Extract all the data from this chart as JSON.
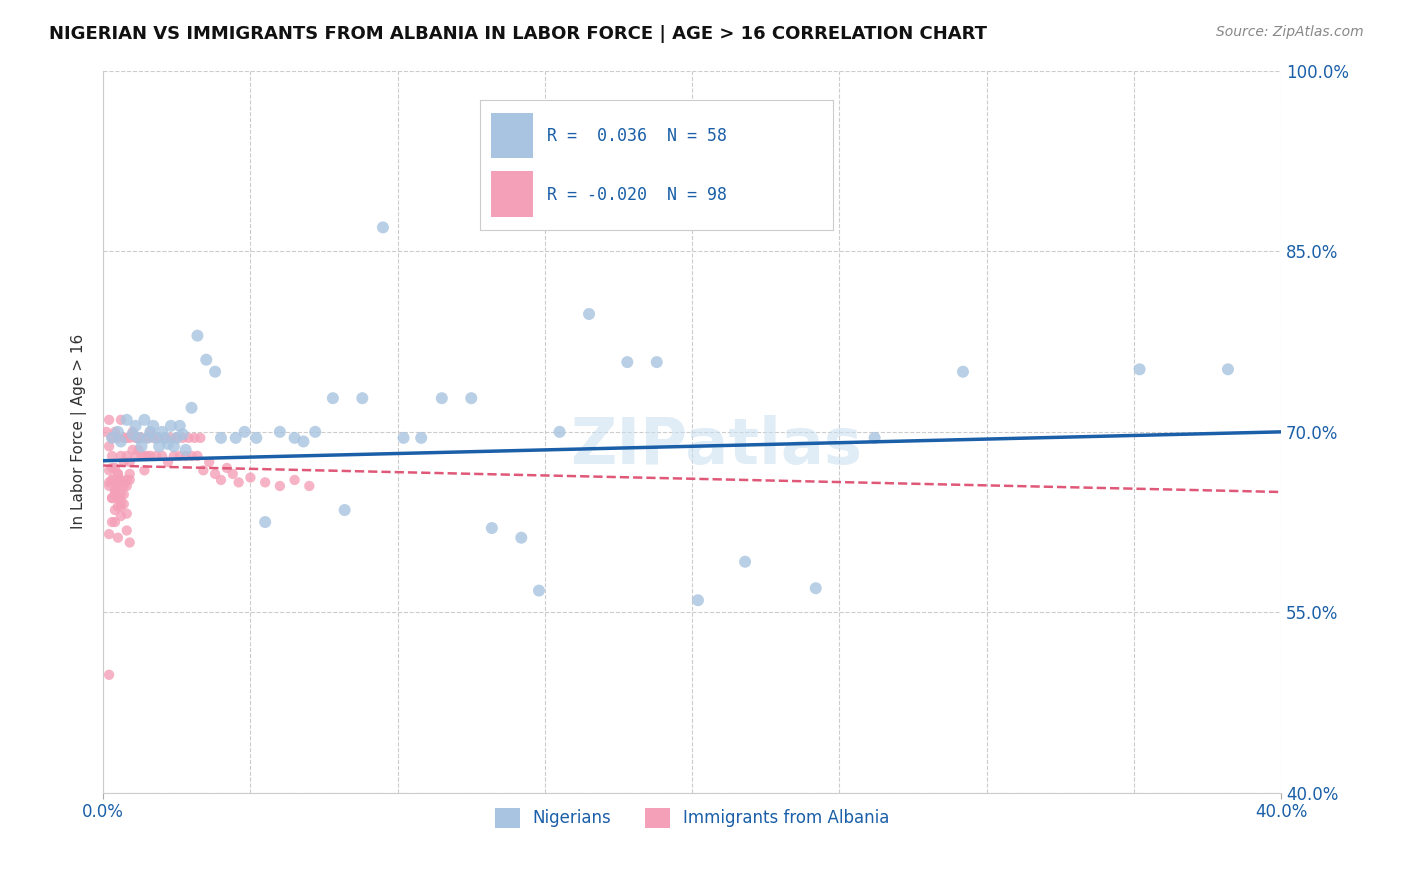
{
  "title": "NIGERIAN VS IMMIGRANTS FROM ALBANIA IN LABOR FORCE | AGE > 16 CORRELATION CHART",
  "source": "Source: ZipAtlas.com",
  "ylabel": "In Labor Force | Age > 16",
  "xlim": [
    0.0,
    0.4
  ],
  "ylim": [
    0.4,
    1.0
  ],
  "xticks": [
    0.0,
    0.05,
    0.1,
    0.15,
    0.2,
    0.25,
    0.3,
    0.35,
    0.4
  ],
  "ytick_positions": [
    0.4,
    0.55,
    0.7,
    0.85,
    1.0
  ],
  "yticklabels": [
    "40.0%",
    "55.0%",
    "70.0%",
    "85.0%",
    "100.0%"
  ],
  "blue_R": 0.036,
  "blue_N": 58,
  "pink_R": -0.02,
  "pink_N": 98,
  "blue_color": "#a8c4e0",
  "pink_color": "#f4a0b8",
  "blue_line_color": "#1a5fa8",
  "pink_line_color": "#e05878",
  "label_color": "#1a5fa8",
  "watermark": "ZIPatlas",
  "blue_line_x0": 0.0,
  "blue_line_y0": 0.676,
  "blue_line_x1": 0.4,
  "blue_line_y1": 0.7,
  "pink_line_x0": 0.0,
  "pink_line_y0": 0.672,
  "pink_line_x1": 0.4,
  "pink_line_y1": 0.65,
  "nigerians_x": [
    0.003,
    0.005,
    0.006,
    0.008,
    0.01,
    0.011,
    0.012,
    0.013,
    0.014,
    0.015,
    0.016,
    0.017,
    0.018,
    0.019,
    0.02,
    0.021,
    0.022,
    0.023,
    0.024,
    0.025,
    0.026,
    0.027,
    0.028,
    0.03,
    0.032,
    0.035,
    0.038,
    0.04,
    0.045,
    0.048,
    0.052,
    0.055,
    0.06,
    0.065,
    0.068,
    0.072,
    0.078,
    0.082,
    0.088,
    0.095,
    0.102,
    0.108,
    0.115,
    0.125,
    0.132,
    0.142,
    0.148,
    0.155,
    0.165,
    0.178,
    0.188,
    0.202,
    0.218,
    0.242,
    0.262,
    0.292,
    0.352,
    0.382
  ],
  "nigerians_y": [
    0.695,
    0.7,
    0.692,
    0.71,
    0.698,
    0.705,
    0.695,
    0.688,
    0.71,
    0.695,
    0.7,
    0.705,
    0.695,
    0.688,
    0.7,
    0.695,
    0.69,
    0.705,
    0.688,
    0.695,
    0.705,
    0.698,
    0.685,
    0.72,
    0.78,
    0.76,
    0.75,
    0.695,
    0.695,
    0.7,
    0.695,
    0.625,
    0.7,
    0.695,
    0.692,
    0.7,
    0.728,
    0.635,
    0.728,
    0.87,
    0.695,
    0.695,
    0.728,
    0.728,
    0.62,
    0.612,
    0.568,
    0.7,
    0.798,
    0.758,
    0.758,
    0.56,
    0.592,
    0.57,
    0.695,
    0.75,
    0.752,
    0.752
  ],
  "albania_x": [
    0.001,
    0.002,
    0.002,
    0.003,
    0.003,
    0.004,
    0.004,
    0.005,
    0.005,
    0.006,
    0.006,
    0.007,
    0.007,
    0.008,
    0.008,
    0.009,
    0.009,
    0.01,
    0.01,
    0.011,
    0.011,
    0.012,
    0.012,
    0.013,
    0.013,
    0.014,
    0.014,
    0.015,
    0.015,
    0.016,
    0.016,
    0.017,
    0.018,
    0.019,
    0.02,
    0.021,
    0.022,
    0.023,
    0.024,
    0.025,
    0.026,
    0.027,
    0.028,
    0.029,
    0.03,
    0.031,
    0.032,
    0.033,
    0.034,
    0.036,
    0.038,
    0.04,
    0.042,
    0.044,
    0.046,
    0.05,
    0.055,
    0.06,
    0.065,
    0.07,
    0.005,
    0.008,
    0.003,
    0.006,
    0.004,
    0.007,
    0.009,
    0.002,
    0.005,
    0.003,
    0.006,
    0.004,
    0.008,
    0.002,
    0.005,
    0.007,
    0.003,
    0.009,
    0.004,
    0.006,
    0.002,
    0.008,
    0.003,
    0.005,
    0.007,
    0.004,
    0.009,
    0.002,
    0.006,
    0.003,
    0.005,
    0.008,
    0.004,
    0.007,
    0.002,
    0.003,
    0.005,
    0.006
  ],
  "albania_y": [
    0.7,
    0.688,
    0.71,
    0.695,
    0.68,
    0.7,
    0.67,
    0.695,
    0.665,
    0.71,
    0.68,
    0.695,
    0.675,
    0.68,
    0.695,
    0.695,
    0.675,
    0.685,
    0.7,
    0.695,
    0.68,
    0.685,
    0.695,
    0.68,
    0.695,
    0.68,
    0.668,
    0.695,
    0.68,
    0.7,
    0.68,
    0.695,
    0.68,
    0.695,
    0.68,
    0.695,
    0.675,
    0.695,
    0.68,
    0.695,
    0.68,
    0.695,
    0.68,
    0.695,
    0.68,
    0.695,
    0.68,
    0.695,
    0.668,
    0.675,
    0.665,
    0.66,
    0.67,
    0.665,
    0.658,
    0.662,
    0.658,
    0.655,
    0.66,
    0.655,
    0.612,
    0.618,
    0.625,
    0.63,
    0.635,
    0.64,
    0.608,
    0.615,
    0.638,
    0.645,
    0.638,
    0.625,
    0.632,
    0.498,
    0.665,
    0.658,
    0.67,
    0.66,
    0.652,
    0.66,
    0.668,
    0.655,
    0.66,
    0.658,
    0.655,
    0.648,
    0.665,
    0.658,
    0.642,
    0.645,
    0.655,
    0.66,
    0.65,
    0.648,
    0.655,
    0.66,
    0.645,
    0.648
  ]
}
